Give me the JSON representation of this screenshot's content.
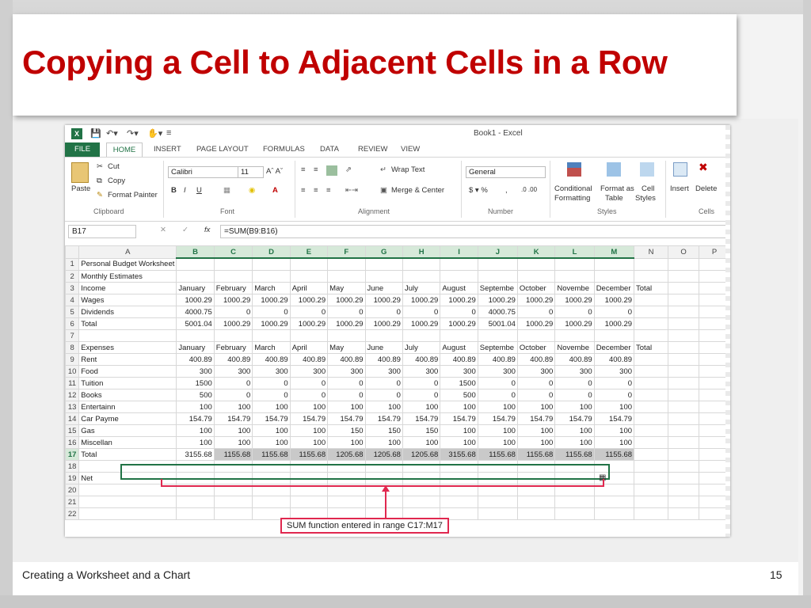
{
  "slide": {
    "title": "Copying a Cell to Adjacent Cells in a Row",
    "footer_left": "Creating a Worksheet and a Chart",
    "page_number": "15"
  },
  "excel": {
    "window_title": "Book1 - Excel",
    "tabs": [
      "FILE",
      "HOME",
      "INSERT",
      "PAGE LAYOUT",
      "FORMULAS",
      "DATA",
      "REVIEW",
      "VIEW"
    ],
    "clipboard": {
      "paste": "Paste",
      "cut": "Cut",
      "copy": "Copy",
      "format_painter": "Format Painter",
      "group": "Clipboard"
    },
    "font": {
      "name": "Calibri",
      "size": "11",
      "group": "Font"
    },
    "alignment": {
      "wrap_text": "Wrap Text",
      "merge_center": "Merge & Center",
      "group": "Alignment"
    },
    "number": {
      "format": "General",
      "group": "Number"
    },
    "styles": {
      "conditional": "Conditional",
      "formatting": "Formatting",
      "format_as": "Format as",
      "table": "Table",
      "cell": "Cell",
      "cell_styles": "Styles",
      "group": "Styles"
    },
    "cells": {
      "insert": "Insert",
      "delete": "Delete",
      "group": "Cells"
    },
    "name_box": "B17",
    "formula": "=SUM(B9:B16)",
    "columns": [
      "A",
      "B",
      "C",
      "D",
      "E",
      "F",
      "G",
      "H",
      "I",
      "J",
      "K",
      "L",
      "M",
      "N",
      "O",
      "P"
    ],
    "rows": [
      [
        "1",
        "Personal Budget Worksheet",
        "",
        "",
        "",
        "",
        "",
        "",
        "",
        "",
        "",
        "",
        "",
        "",
        "",
        "",
        ""
      ],
      [
        "2",
        "Monthly Estimates",
        "",
        "",
        "",
        "",
        "",
        "",
        "",
        "",
        "",
        "",
        "",
        "",
        "",
        "",
        ""
      ],
      [
        "3",
        "Income",
        "January",
        "February",
        "March",
        "April",
        "May",
        "June",
        "July",
        "August",
        "Septembe",
        "October",
        "Novembe",
        "December",
        "Total",
        "",
        ""
      ],
      [
        "4",
        "Wages",
        "1000.29",
        "1000.29",
        "1000.29",
        "1000.29",
        "1000.29",
        "1000.29",
        "1000.29",
        "1000.29",
        "1000.29",
        "1000.29",
        "1000.29",
        "1000.29",
        "",
        "",
        ""
      ],
      [
        "5",
        "Dividends",
        "4000.75",
        "0",
        "0",
        "0",
        "0",
        "0",
        "0",
        "0",
        "4000.75",
        "0",
        "0",
        "0",
        "",
        "",
        ""
      ],
      [
        "6",
        "Total",
        "5001.04",
        "1000.29",
        "1000.29",
        "1000.29",
        "1000.29",
        "1000.29",
        "1000.29",
        "1000.29",
        "5001.04",
        "1000.29",
        "1000.29",
        "1000.29",
        "",
        "",
        ""
      ],
      [
        "7",
        "",
        "",
        "",
        "",
        "",
        "",
        "",
        "",
        "",
        "",
        "",
        "",
        "",
        "",
        "",
        ""
      ],
      [
        "8",
        "Expenses",
        "January",
        "February",
        "March",
        "April",
        "May",
        "June",
        "July",
        "August",
        "Septembe",
        "October",
        "Novembe",
        "December",
        "Total",
        "",
        ""
      ],
      [
        "9",
        "Rent",
        "400.89",
        "400.89",
        "400.89",
        "400.89",
        "400.89",
        "400.89",
        "400.89",
        "400.89",
        "400.89",
        "400.89",
        "400.89",
        "400.89",
        "",
        "",
        ""
      ],
      [
        "10",
        "Food",
        "300",
        "300",
        "300",
        "300",
        "300",
        "300",
        "300",
        "300",
        "300",
        "300",
        "300",
        "300",
        "",
        "",
        ""
      ],
      [
        "11",
        "Tuition",
        "1500",
        "0",
        "0",
        "0",
        "0",
        "0",
        "0",
        "1500",
        "0",
        "0",
        "0",
        "0",
        "",
        "",
        ""
      ],
      [
        "12",
        "Books",
        "500",
        "0",
        "0",
        "0",
        "0",
        "0",
        "0",
        "500",
        "0",
        "0",
        "0",
        "0",
        "",
        "",
        ""
      ],
      [
        "13",
        "Entertainn",
        "100",
        "100",
        "100",
        "100",
        "100",
        "100",
        "100",
        "100",
        "100",
        "100",
        "100",
        "100",
        "",
        "",
        ""
      ],
      [
        "14",
        "Car Payme",
        "154.79",
        "154.79",
        "154.79",
        "154.79",
        "154.79",
        "154.79",
        "154.79",
        "154.79",
        "154.79",
        "154.79",
        "154.79",
        "154.79",
        "",
        "",
        ""
      ],
      [
        "15",
        "Gas",
        "100",
        "100",
        "100",
        "100",
        "150",
        "150",
        "150",
        "100",
        "100",
        "100",
        "100",
        "100",
        "",
        "",
        ""
      ],
      [
        "16",
        "Miscellan",
        "100",
        "100",
        "100",
        "100",
        "100",
        "100",
        "100",
        "100",
        "100",
        "100",
        "100",
        "100",
        "",
        "",
        ""
      ],
      [
        "17",
        "Total",
        "3155.68",
        "1155.68",
        "1155.68",
        "1155.68",
        "1205.68",
        "1205.68",
        "1205.68",
        "3155.68",
        "1155.68",
        "1155.68",
        "1155.68",
        "1155.68",
        "",
        "",
        ""
      ],
      [
        "18",
        "",
        "",
        "",
        "",
        "",
        "",
        "",
        "",
        "",
        "",
        "",
        "",
        "",
        "",
        "",
        ""
      ],
      [
        "19",
        "Net",
        "",
        "",
        "",
        "",
        "",
        "",
        "",
        "",
        "",
        "",
        "",
        "",
        "",
        "",
        ""
      ],
      [
        "20",
        "",
        "",
        "",
        "",
        "",
        "",
        "",
        "",
        "",
        "",
        "",
        "",
        "",
        "",
        "",
        ""
      ],
      [
        "21",
        "",
        "",
        "",
        "",
        "",
        "",
        "",
        "",
        "",
        "",
        "",
        "",
        "",
        "",
        "",
        ""
      ],
      [
        "22",
        "",
        "",
        "",
        "",
        "",
        "",
        "",
        "",
        "",
        "",
        "",
        "",
        "",
        "",
        "",
        ""
      ]
    ],
    "callout": "SUM function entered in range C17:M17"
  }
}
